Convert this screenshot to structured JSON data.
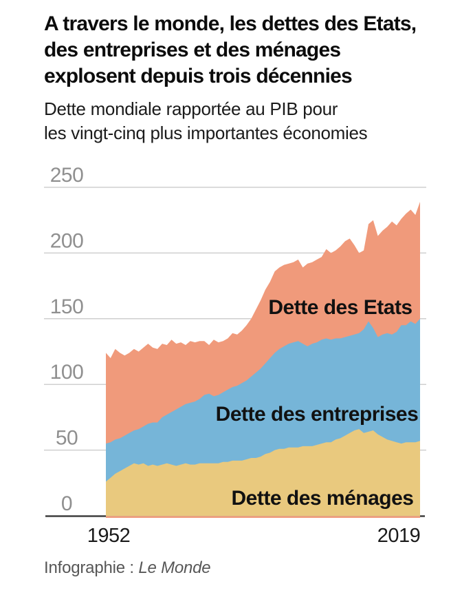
{
  "header": {
    "title_lines": [
      "A travers le monde, les dettes des Etats,",
      "des entreprises et des ménages",
      "explosent depuis trois décennies"
    ],
    "subtitle_lines": [
      "Dette mondiale rapportée au PIB pour",
      "les vingt-cinq plus importantes économies"
    ]
  },
  "footer": {
    "credit_prefix": "Infographie : ",
    "credit_source": "Le Monde"
  },
  "chart_data": {
    "type": "area",
    "stacked": true,
    "title": "A travers le monde, les dettes des Etats, des entreprises et des ménages explosent depuis trois décennies",
    "subtitle": "Dette mondiale rapportée au PIB pour les vingt-cinq plus importantes économies",
    "xlabel": "",
    "ylabel": "",
    "ylim": [
      0,
      250
    ],
    "xlim": [
      1952,
      2019
    ],
    "grid": true,
    "legend_position": "labels-inside-areas",
    "y_ticks": [
      0,
      50,
      100,
      150,
      200,
      250
    ],
    "x_tick_labels": [
      "1952",
      "2019"
    ],
    "x": [
      1952,
      1953,
      1954,
      1955,
      1956,
      1957,
      1958,
      1959,
      1960,
      1961,
      1962,
      1963,
      1964,
      1965,
      1966,
      1967,
      1968,
      1969,
      1970,
      1971,
      1972,
      1973,
      1974,
      1975,
      1976,
      1977,
      1978,
      1979,
      1980,
      1981,
      1982,
      1983,
      1984,
      1985,
      1986,
      1987,
      1988,
      1989,
      1990,
      1991,
      1992,
      1993,
      1994,
      1995,
      1996,
      1997,
      1998,
      1999,
      2000,
      2001,
      2002,
      2003,
      2004,
      2005,
      2006,
      2007,
      2008,
      2009,
      2010,
      2011,
      2012,
      2013,
      2014,
      2015,
      2016,
      2017,
      2018,
      2019
    ],
    "series": [
      {
        "name": "Dette des ménages",
        "color": "#E9C97E",
        "values": [
          26,
          29,
          32,
          34,
          36,
          38,
          40,
          39,
          40,
          38,
          39,
          38,
          39,
          40,
          39,
          38,
          39,
          40,
          39,
          39,
          40,
          40,
          40,
          40,
          40,
          41,
          41,
          42,
          42,
          42,
          43,
          44,
          44,
          45,
          47,
          48,
          50,
          51,
          51,
          52,
          52,
          52,
          53,
          53,
          53,
          54,
          55,
          56,
          56,
          58,
          59,
          61,
          63,
          65,
          66,
          63,
          64,
          65,
          62,
          60,
          58,
          57,
          56,
          55,
          56,
          56,
          56,
          57
        ]
      },
      {
        "name": "Dette des entreprises",
        "color": "#76B5D8",
        "values": [
          29,
          27,
          26,
          25,
          25,
          25,
          25,
          27,
          28,
          32,
          32,
          33,
          36,
          37,
          40,
          43,
          44,
          45,
          47,
          48,
          49,
          52,
          53,
          51,
          52,
          53,
          55,
          56,
          57,
          59,
          60,
          62,
          65,
          67,
          69,
          72,
          74,
          76,
          78,
          79,
          80,
          81,
          78,
          76,
          78,
          78,
          79,
          79,
          78,
          77,
          76,
          75,
          74,
          73,
          73,
          79,
          84,
          78,
          74,
          78,
          81,
          81,
          84,
          90,
          89,
          92,
          90,
          93
        ]
      },
      {
        "name": "Dette des Etats",
        "color": "#F09A7B",
        "values": [
          69,
          64,
          69,
          65,
          61,
          61,
          62,
          59,
          60,
          61,
          57,
          56,
          56,
          53,
          55,
          50,
          49,
          45,
          47,
          45,
          44,
          41,
          37,
          43,
          40,
          39,
          39,
          41,
          39,
          40,
          42,
          44,
          48,
          52,
          56,
          58,
          62,
          62,
          62,
          61,
          61,
          62,
          58,
          63,
          62,
          63,
          63,
          68,
          66,
          67,
          70,
          73,
          74,
          68,
          61,
          60,
          74,
          82,
          77,
          79,
          81,
          86,
          81,
          81,
          85,
          85,
          83,
          89
        ]
      }
    ]
  }
}
